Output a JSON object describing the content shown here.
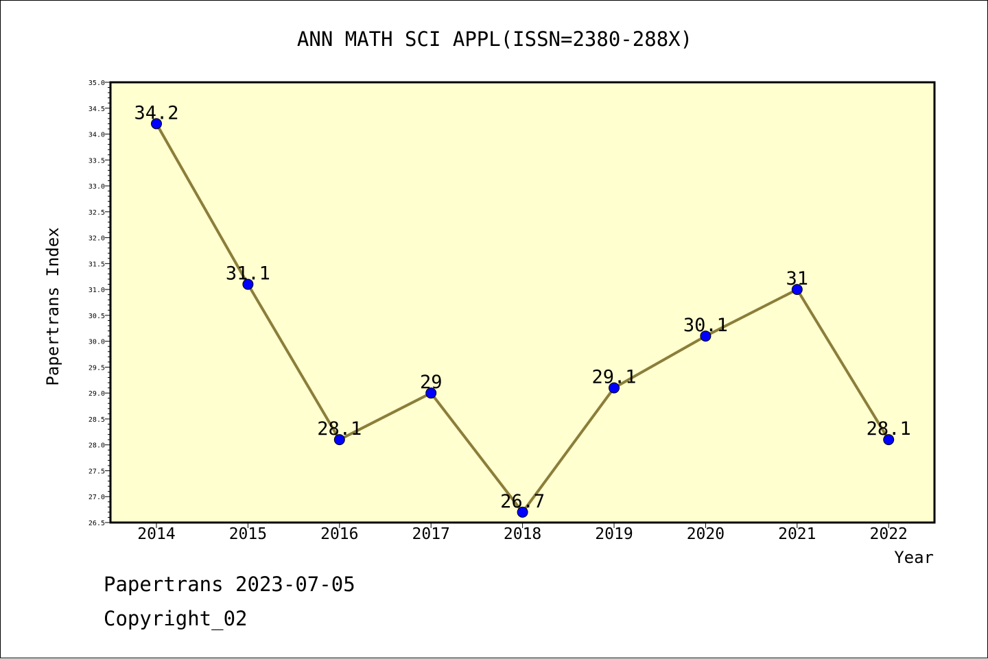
{
  "chart_data": {
    "type": "line",
    "title": "ANN MATH SCI APPL(ISSN=2380-288X)",
    "xlabel": "Year",
    "ylabel": "Papertrans Index",
    "categories": [
      "2014",
      "2015",
      "2016",
      "2017",
      "2018",
      "2019",
      "2020",
      "2021",
      "2022"
    ],
    "series": [
      {
        "values": [
          34.2,
          31.1,
          28.1,
          29,
          26.7,
          29.1,
          30.1,
          31,
          28.1
        ],
        "labels": [
          "34.2",
          "31.1",
          "28.1",
          "29",
          "26.7",
          "29.1",
          "30.1",
          "31",
          "28.1"
        ]
      }
    ],
    "ylim": [
      26.5,
      35.0
    ],
    "ytick_step": 0.5,
    "grid": false,
    "colors": {
      "plot_background": "#ffffd0",
      "line": "#8b7e3a",
      "marker": "#0000ff"
    }
  },
  "footer": {
    "date_text": "Papertrans 2023-07-05",
    "copyright_text": "Copyright_02"
  }
}
